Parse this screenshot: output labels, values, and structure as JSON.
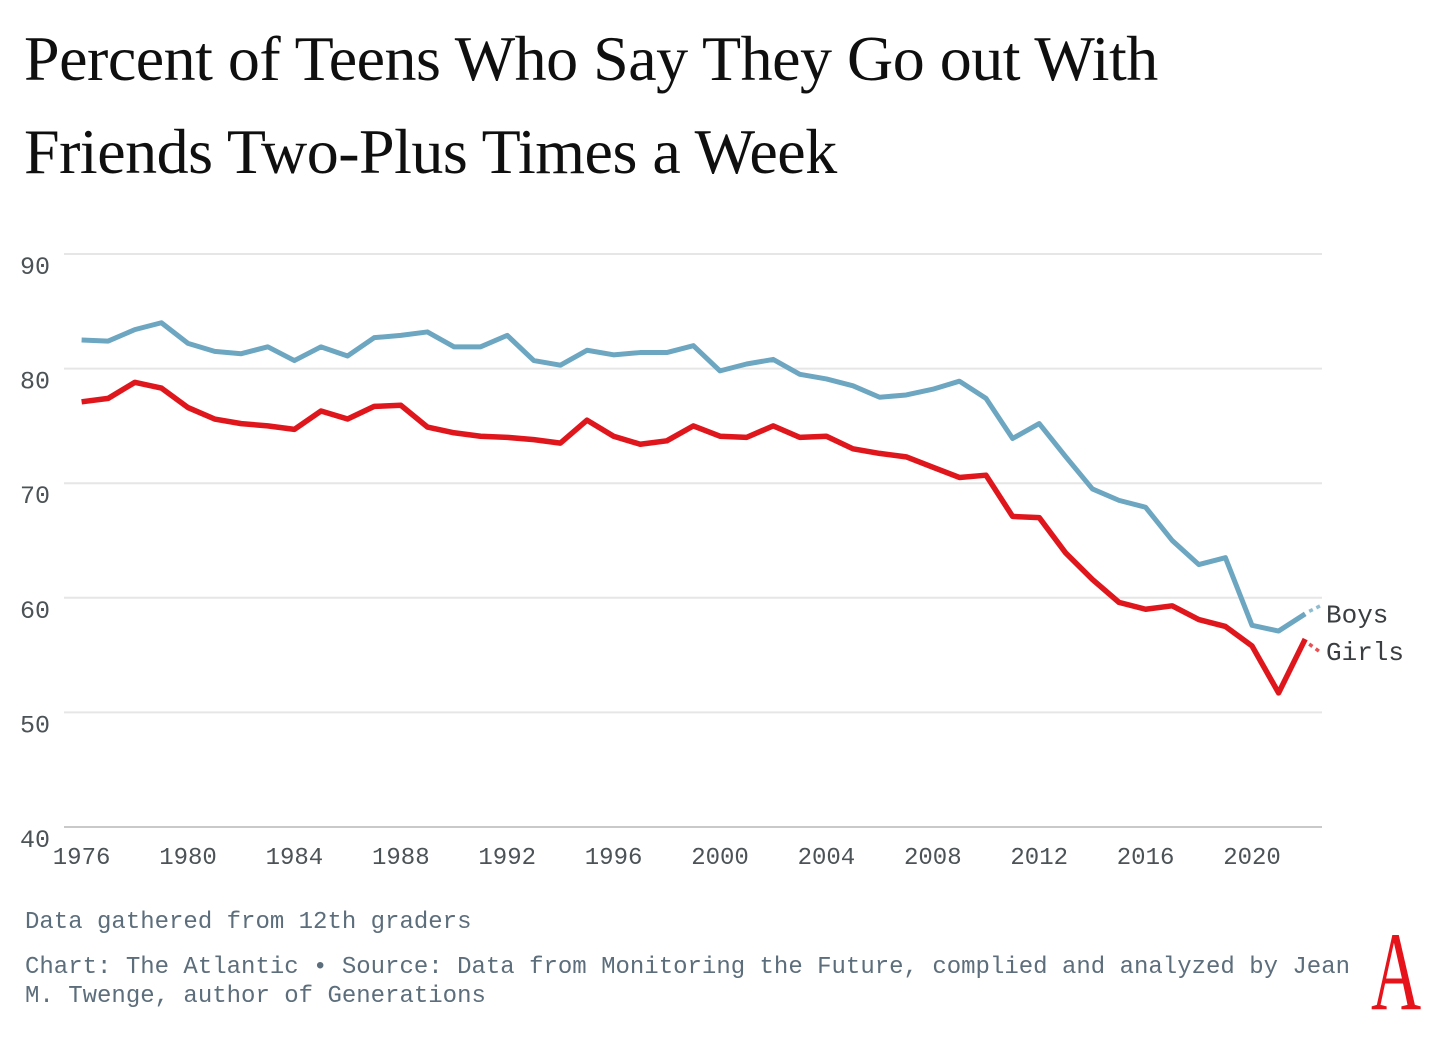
{
  "page": {
    "title_lines": [
      "Percent of Teens Who Say They Go out With",
      "Friends Two-Plus Times a Week"
    ],
    "footer_note": "Data gathered from 12th graders",
    "footer_credit": "Chart: The Atlantic • Source: Data from Monitoring the Future, complied and analyzed by Jean M. Twenge, author of Generations",
    "logo_letter": "A"
  },
  "colors": {
    "boys_line": "#6CA6C1",
    "girls_line": "#E0161D",
    "logo_red": "#E7131A",
    "gridline": "#E6E6E6",
    "axis_line": "#C9C9C9",
    "tick_label": "#4C5357",
    "series_label": "#3A3E41",
    "footer_text": "#5C6E7C",
    "title_text": "#0F0F0F"
  },
  "chart_data": {
    "type": "line",
    "title": "Percent of Teens Who Say They Go out With Friends Two-Plus Times a Week",
    "xlabel": "",
    "ylabel": "",
    "xlim": [
      1976,
      2022
    ],
    "ylim": [
      40,
      90
    ],
    "xticks": [
      1976,
      1980,
      1984,
      1988,
      1992,
      1996,
      2000,
      2004,
      2008,
      2012,
      2016,
      2020
    ],
    "yticks": [
      40,
      50,
      60,
      70,
      80,
      90
    ],
    "grid": "horizontal",
    "legend_position": "end-of-line-labels",
    "x": [
      1976,
      1977,
      1978,
      1979,
      1980,
      1981,
      1982,
      1983,
      1984,
      1985,
      1986,
      1987,
      1988,
      1989,
      1990,
      1991,
      1992,
      1993,
      1994,
      1995,
      1996,
      1997,
      1998,
      1999,
      2000,
      2001,
      2002,
      2003,
      2004,
      2005,
      2006,
      2007,
      2008,
      2009,
      2010,
      2011,
      2012,
      2013,
      2014,
      2015,
      2016,
      2017,
      2018,
      2019,
      2020,
      2021,
      2022
    ],
    "series": [
      {
        "name": "Boys",
        "color": "#6CA6C1",
        "stroke_width": 5,
        "values": [
          82.5,
          82.4,
          83.4,
          84.0,
          82.2,
          81.5,
          81.3,
          81.9,
          80.7,
          81.9,
          81.1,
          82.7,
          82.9,
          83.2,
          81.9,
          81.9,
          82.9,
          80.7,
          80.3,
          81.6,
          81.2,
          81.4,
          81.4,
          82.0,
          79.8,
          80.4,
          80.8,
          79.5,
          79.1,
          78.5,
          77.5,
          77.7,
          78.2,
          78.9,
          77.4,
          73.9,
          75.2,
          72.3,
          69.5,
          68.5,
          67.9,
          65.0,
          62.9,
          63.5,
          57.6,
          57.1,
          58.6
        ]
      },
      {
        "name": "Girls",
        "color": "#E0161D",
        "stroke_width": 5.5,
        "values": [
          77.1,
          77.4,
          78.8,
          78.3,
          76.6,
          75.6,
          75.2,
          75.0,
          74.7,
          76.3,
          75.6,
          76.7,
          76.8,
          74.9,
          74.4,
          74.1,
          74.0,
          73.8,
          73.5,
          75.5,
          74.1,
          73.4,
          73.7,
          75.0,
          74.1,
          74.0,
          75.0,
          74.0,
          74.1,
          73.0,
          72.6,
          72.3,
          71.4,
          70.5,
          70.7,
          67.1,
          67.0,
          63.9,
          61.6,
          59.6,
          59.0,
          59.3,
          58.1,
          57.5,
          55.8,
          51.7,
          56.4
        ]
      }
    ]
  }
}
